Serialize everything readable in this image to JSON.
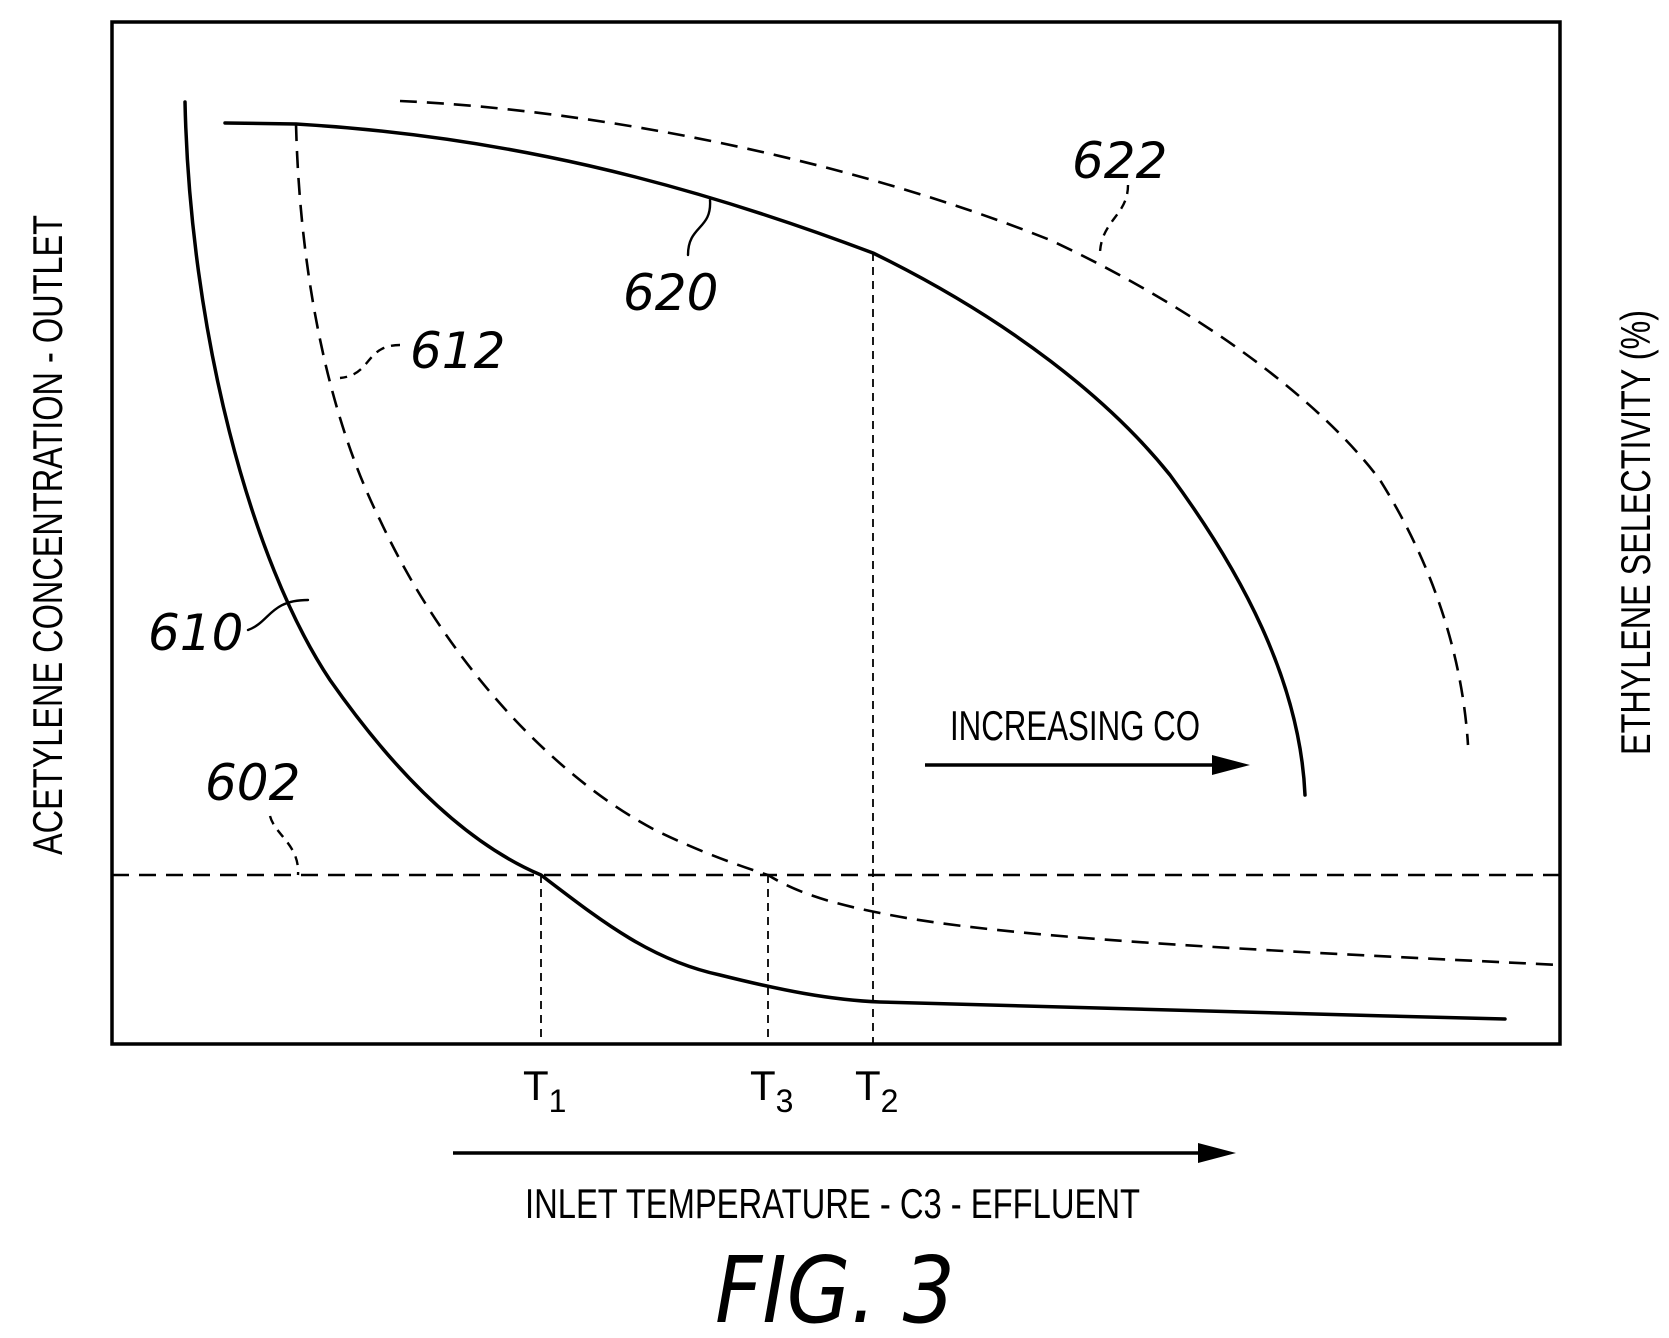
{
  "figure": {
    "x_axis_label": "INLET TEMPERATURE - C3 - EFFLUENT",
    "y_left_label": "ACETYLENE CONCENTRATION - OUTLET",
    "y_right_label": "ETHYLENE SELECTIVITY (%)",
    "annotation": "INCREASING CO",
    "caption": "FIG. 3"
  },
  "refs": {
    "r602": "602",
    "r610": "610",
    "r612": "612",
    "r620": "620",
    "r622": "622"
  },
  "temps": {
    "t1_main": "T",
    "t1_sub": "1",
    "t3_main": "T",
    "t3_sub": "3",
    "t2_main": "T",
    "t2_sub": "2"
  },
  "chart_data": {
    "type": "line",
    "title": "FIG. 3",
    "xlabel": "INLET TEMPERATURE - C3 - EFFLUENT",
    "ylabel": "ACETYLENE CONCENTRATION - OUTLET",
    "y2label": "ETHYLENE SELECTIVITY (%)",
    "x_tick_labels": [
      "T1",
      "T3",
      "T2"
    ],
    "series": [
      {
        "name": "602",
        "style": "dashed",
        "axis": "left"
      },
      {
        "name": "610",
        "style": "solid",
        "axis": "left"
      },
      {
        "name": "612",
        "style": "dashed",
        "axis": "left"
      },
      {
        "name": "620",
        "style": "solid",
        "axis": "right"
      },
      {
        "name": "622",
        "style": "dashed",
        "axis": "right"
      }
    ]
  }
}
